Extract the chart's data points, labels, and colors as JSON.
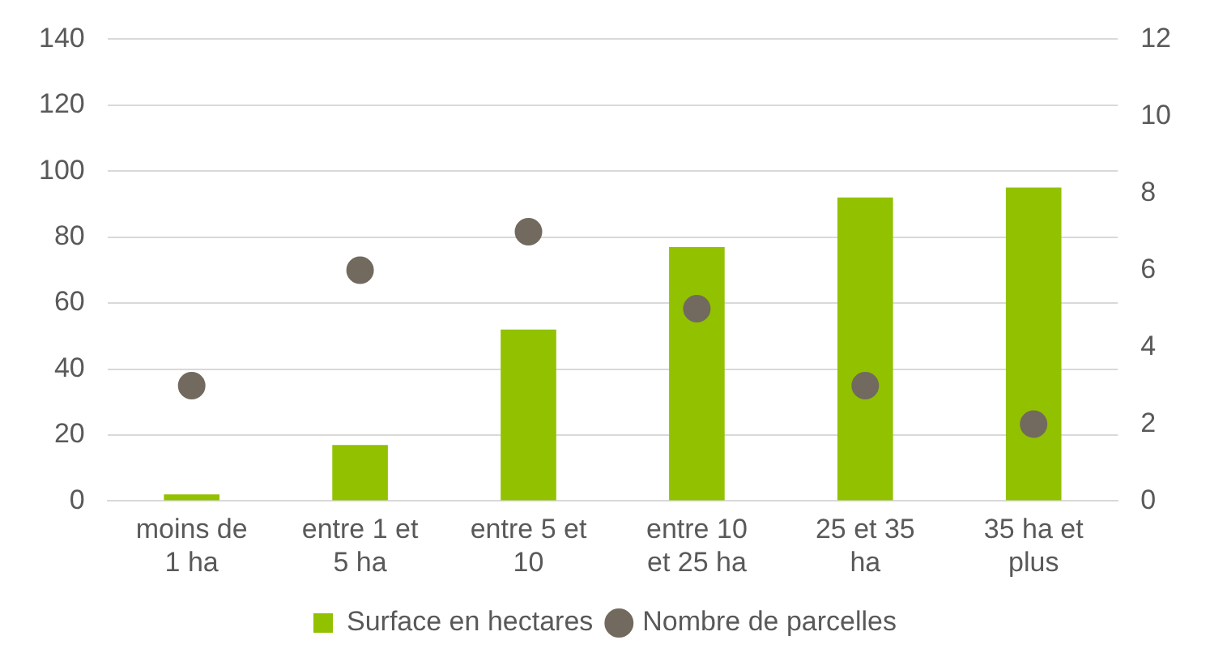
{
  "chart_data": {
    "type": "bar",
    "categories": [
      "moins de 1 ha",
      "entre 1 et 5 ha",
      "entre 5 et 10",
      "entre 10 et 25 ha",
      "25 et 35 ha",
      "35 ha et plus"
    ],
    "series": [
      {
        "name": "Surface en hectares",
        "color": "#92c100",
        "values": [
          2,
          17,
          52,
          77,
          92,
          95
        ]
      },
      {
        "name": "Nombre de parcelles",
        "type": "scatter",
        "axis": "y2",
        "color": "#726a5e",
        "values": [
          3,
          6,
          7,
          5,
          3,
          2
        ]
      }
    ],
    "ylim": [
      0,
      140
    ],
    "yticks": [
      0,
      20,
      40,
      60,
      80,
      100,
      120,
      140
    ],
    "y2lim": [
      0,
      12
    ],
    "y2ticks": [
      0,
      2,
      4,
      6,
      8,
      10,
      12
    ],
    "grid": "y",
    "legend": "bottom",
    "marker": "circle"
  }
}
